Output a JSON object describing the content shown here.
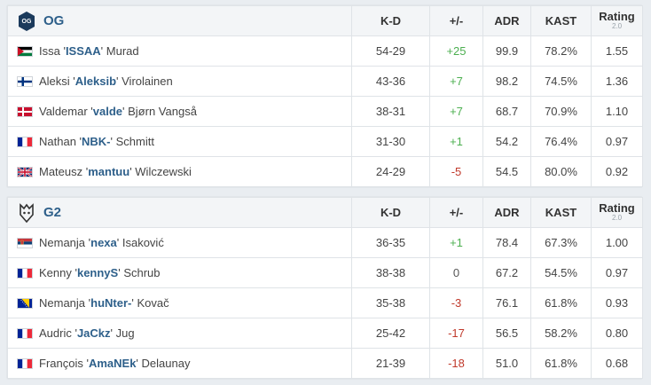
{
  "teams": [
    {
      "name": "OG",
      "logo_icon": "og-logo-icon",
      "headers": {
        "kd": "K-D",
        "pm": "+/-",
        "adr": "ADR",
        "kast": "KAST",
        "rating": "Rating",
        "rating_sub": "2.0"
      },
      "players": [
        {
          "flag": "jordan-flag-icon",
          "first": "Issa '",
          "nick": "ISSAA",
          "last": "' Murad",
          "kd": "54-29",
          "pm": "+25",
          "pm_sign": "pos",
          "adr": "99.9",
          "kast": "78.2%",
          "rating": "1.55"
        },
        {
          "flag": "finland-flag-icon",
          "first": "Aleksi '",
          "nick": "Aleksib",
          "last": "' Virolainen",
          "kd": "43-36",
          "pm": "+7",
          "pm_sign": "pos",
          "adr": "98.2",
          "kast": "74.5%",
          "rating": "1.36"
        },
        {
          "flag": "denmark-flag-icon",
          "first": "Valdemar '",
          "nick": "valde",
          "last": "' Bjørn Vangså",
          "kd": "38-31",
          "pm": "+7",
          "pm_sign": "pos",
          "adr": "68.7",
          "kast": "70.9%",
          "rating": "1.10"
        },
        {
          "flag": "france-flag-icon",
          "first": "Nathan '",
          "nick": "NBK-",
          "last": "' Schmitt",
          "kd": "31-30",
          "pm": "+1",
          "pm_sign": "pos",
          "adr": "54.2",
          "kast": "76.4%",
          "rating": "0.97"
        },
        {
          "flag": "uk-flag-icon",
          "first": "Mateusz '",
          "nick": "mantuu",
          "last": "' Wilczewski",
          "kd": "24-29",
          "pm": "-5",
          "pm_sign": "neg",
          "adr": "54.5",
          "kast": "80.0%",
          "rating": "0.92"
        }
      ]
    },
    {
      "name": "G2",
      "logo_icon": "g2-logo-icon",
      "headers": {
        "kd": "K-D",
        "pm": "+/-",
        "adr": "ADR",
        "kast": "KAST",
        "rating": "Rating",
        "rating_sub": "2.0"
      },
      "players": [
        {
          "flag": "serbia-flag-icon",
          "first": "Nemanja '",
          "nick": "nexa",
          "last": "' Isaković",
          "kd": "36-35",
          "pm": "+1",
          "pm_sign": "pos",
          "adr": "78.4",
          "kast": "67.3%",
          "rating": "1.00"
        },
        {
          "flag": "france-flag-icon",
          "first": "Kenny '",
          "nick": "kennyS",
          "last": "' Schrub",
          "kd": "38-38",
          "pm": "0",
          "pm_sign": "neu",
          "adr": "67.2",
          "kast": "54.5%",
          "rating": "0.97"
        },
        {
          "flag": "bosnia-flag-icon",
          "first": "Nemanja '",
          "nick": "huNter-",
          "last": "' Kovač",
          "kd": "35-38",
          "pm": "-3",
          "pm_sign": "neg",
          "adr": "76.1",
          "kast": "61.8%",
          "rating": "0.93"
        },
        {
          "flag": "france-flag-icon",
          "first": "Audric '",
          "nick": "JaCkz",
          "last": "' Jug",
          "kd": "25-42",
          "pm": "-17",
          "pm_sign": "neg",
          "adr": "56.5",
          "kast": "58.2%",
          "rating": "0.80"
        },
        {
          "flag": "france-flag-icon",
          "first": "François '",
          "nick": "AmaNEk",
          "last": "' Delaunay",
          "kd": "21-39",
          "pm": "-18",
          "pm_sign": "neg",
          "adr": "51.0",
          "kast": "61.8%",
          "rating": "0.68"
        }
      ]
    }
  ],
  "colors": {
    "positive": "#4caf50",
    "negative": "#c0392b",
    "nick": "#2d5f8a"
  }
}
